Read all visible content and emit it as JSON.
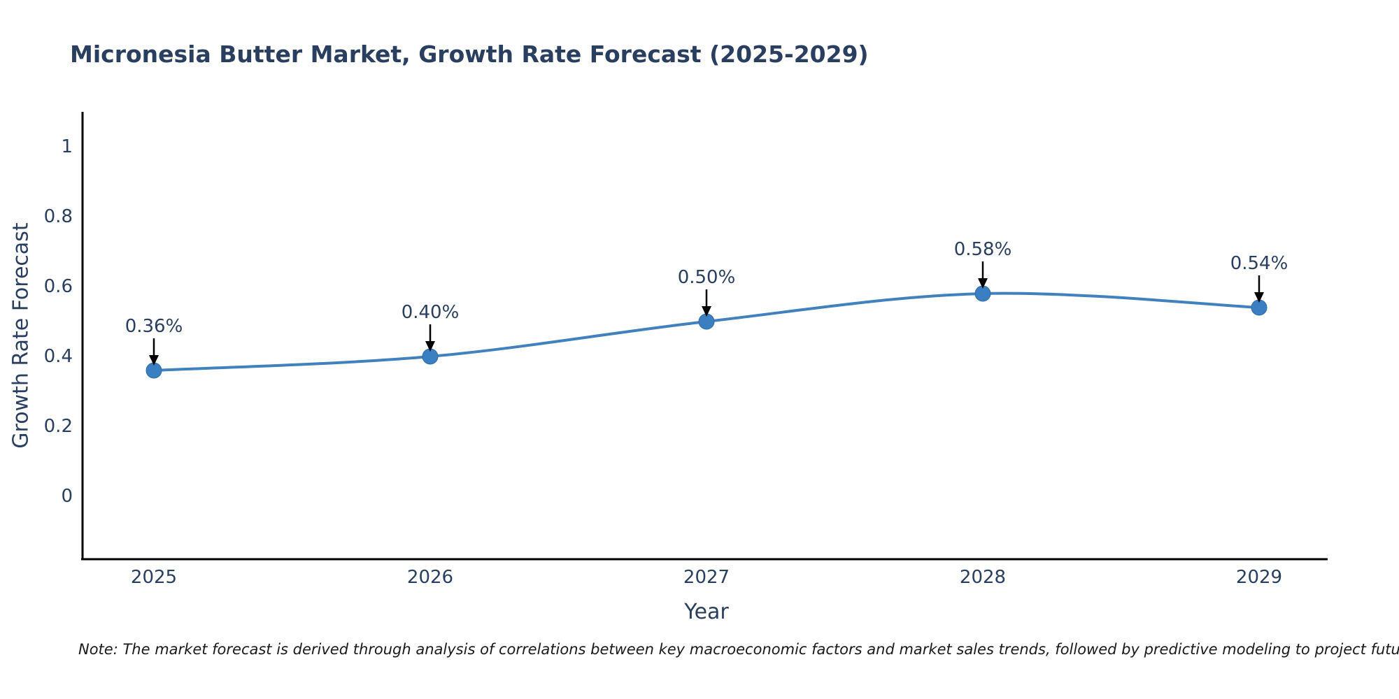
{
  "note": "Note: The market forecast is derived through analysis of correlations between key macroeconomic factors and market sales trends, followed by predictive modeling to project future sales",
  "chart_data": {
    "type": "line",
    "title": "Micronesia Butter Market, Growth Rate Forecast (2025-2029)",
    "xlabel": "Year",
    "ylabel": "Growth Rate Forecast",
    "x": [
      2025,
      2026,
      2027,
      2028,
      2029
    ],
    "series": [
      {
        "name": "Growth Rate Forecast",
        "values": [
          0.36,
          0.4,
          0.5,
          0.58,
          0.54
        ]
      }
    ],
    "point_labels": [
      "0.36%",
      "0.40%",
      "0.50%",
      "0.58%",
      "0.54%"
    ],
    "xtick_labels": [
      "2025",
      "2026",
      "2027",
      "2028",
      "2029"
    ],
    "ytick_labels": [
      "0",
      "0.2",
      "0.4",
      "0.6",
      "0.8",
      "1"
    ],
    "ytick_values": [
      0,
      0.2,
      0.4,
      0.6,
      0.8,
      1
    ],
    "ylim": [
      -0.18,
      1.1
    ],
    "grid": false,
    "legend": "none",
    "line_shape": "spline",
    "annotation_arrows": true,
    "colors": {
      "line": "#4181bd",
      "marker_fill": "#3a7fc1",
      "marker_edge": "#2e6da4",
      "axis": "#000000",
      "text": "#2a3f5f",
      "arrow": "#000000",
      "note_text": "#1a1a1a"
    }
  }
}
